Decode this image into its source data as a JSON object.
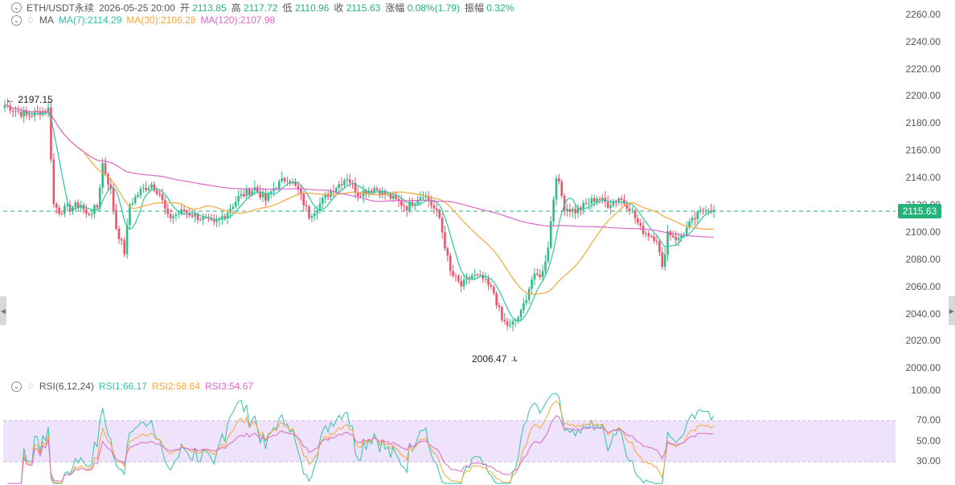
{
  "header": {
    "symbol": "ETH/USDT永续",
    "datetime": "2026-05-25 20:00",
    "open_label": "开",
    "open": "2113.85",
    "high_label": "高",
    "high": "2117.72",
    "low_label": "低",
    "low": "2110.96",
    "close_label": "收",
    "close": "2115.63",
    "change_label": "涨幅",
    "change": "0.08%(1.79)",
    "amplitude_label": "振幅",
    "amplitude": "0.32%"
  },
  "ma_legend": {
    "name": "MA",
    "ma7": "MA(7):2114.29",
    "ma30": "MA(30):2106.28",
    "ma120": "MA(120):2107.98"
  },
  "rsi_legend": {
    "name": "RSI(6,12,24)",
    "rsi1": "RSI1:66.17",
    "rsi2": "RSI2:58.64",
    "rsi3": "RSI3:54.67"
  },
  "price_axis": [
    "2260.00",
    "2240.00",
    "2220.00",
    "2200.00",
    "2180.00",
    "2160.00",
    "2140.00",
    "2120.00",
    "2100.00",
    "2080.00",
    "2060.00",
    "2040.00",
    "2020.00",
    "2000.00"
  ],
  "rsi_axis": [
    "100.00",
    "70.00",
    "50.00",
    "30.00"
  ],
  "current_price": "2115.63",
  "annotations": {
    "high_mark": "2197.15",
    "low_mark": "2006.47"
  },
  "colors": {
    "up": "#2dbd85",
    "down": "#f0516b",
    "ma7": "#2ec4a6",
    "ma30": "#f4a83a",
    "ma120": "#d968c8",
    "rsi_band": "#efe3fb"
  },
  "chart_data": {
    "type": "candlestick",
    "ylim": [
      2000,
      2265
    ],
    "anchors": [
      [
        0,
        2193
      ],
      [
        8,
        2185
      ],
      [
        16,
        2190
      ],
      [
        18,
        2120
      ],
      [
        20,
        2115
      ],
      [
        28,
        2120
      ],
      [
        30,
        2112
      ],
      [
        34,
        2118
      ],
      [
        36,
        2150
      ],
      [
        39,
        2130
      ],
      [
        41,
        2103
      ],
      [
        44,
        2085
      ],
      [
        46,
        2120
      ],
      [
        50,
        2130
      ],
      [
        54,
        2135
      ],
      [
        57,
        2128
      ],
      [
        60,
        2110
      ],
      [
        66,
        2115
      ],
      [
        72,
        2110
      ],
      [
        77,
        2105
      ],
      [
        82,
        2115
      ],
      [
        86,
        2125
      ],
      [
        92,
        2132
      ],
      [
        96,
        2123
      ],
      [
        99,
        2132
      ],
      [
        104,
        2140
      ],
      [
        108,
        2130
      ],
      [
        112,
        2112
      ],
      [
        115,
        2118
      ],
      [
        120,
        2130
      ],
      [
        126,
        2140
      ],
      [
        130,
        2128
      ],
      [
        136,
        2132
      ],
      [
        142,
        2125
      ],
      [
        148,
        2118
      ],
      [
        154,
        2128
      ],
      [
        157,
        2120
      ],
      [
        160,
        2110
      ],
      [
        164,
        2070
      ],
      [
        168,
        2060
      ],
      [
        172,
        2068
      ],
      [
        176,
        2065
      ],
      [
        180,
        2055
      ],
      [
        183,
        2035
      ],
      [
        186,
        2030
      ],
      [
        190,
        2040
      ],
      [
        194,
        2065
      ],
      [
        198,
        2070
      ],
      [
        200,
        2090
      ],
      [
        203,
        2142
      ],
      [
        206,
        2118
      ],
      [
        210,
        2115
      ],
      [
        214,
        2120
      ],
      [
        218,
        2125
      ],
      [
        222,
        2120
      ],
      [
        226,
        2125
      ],
      [
        230,
        2118
      ],
      [
        234,
        2102
      ],
      [
        238,
        2097
      ],
      [
        240,
        2095
      ],
      [
        242,
        2072
      ],
      [
        244,
        2100
      ],
      [
        248,
        2094
      ],
      [
        252,
        2105
      ],
      [
        255,
        2112
      ],
      [
        258,
        2118
      ],
      [
        261,
        2116
      ]
    ],
    "ma_series": [
      {
        "name": "MA(7)",
        "period": 7
      },
      {
        "name": "MA(30)",
        "period": 30
      },
      {
        "name": "MA(120)",
        "period": 120
      }
    ],
    "rsi_series": [
      {
        "name": "RSI1",
        "period": 6
      },
      {
        "name": "RSI2",
        "period": 12
      },
      {
        "name": "RSI3",
        "period": 24
      }
    ],
    "rsi_ylim": [
      0,
      100
    ],
    "rsi_band": [
      30,
      70
    ]
  }
}
